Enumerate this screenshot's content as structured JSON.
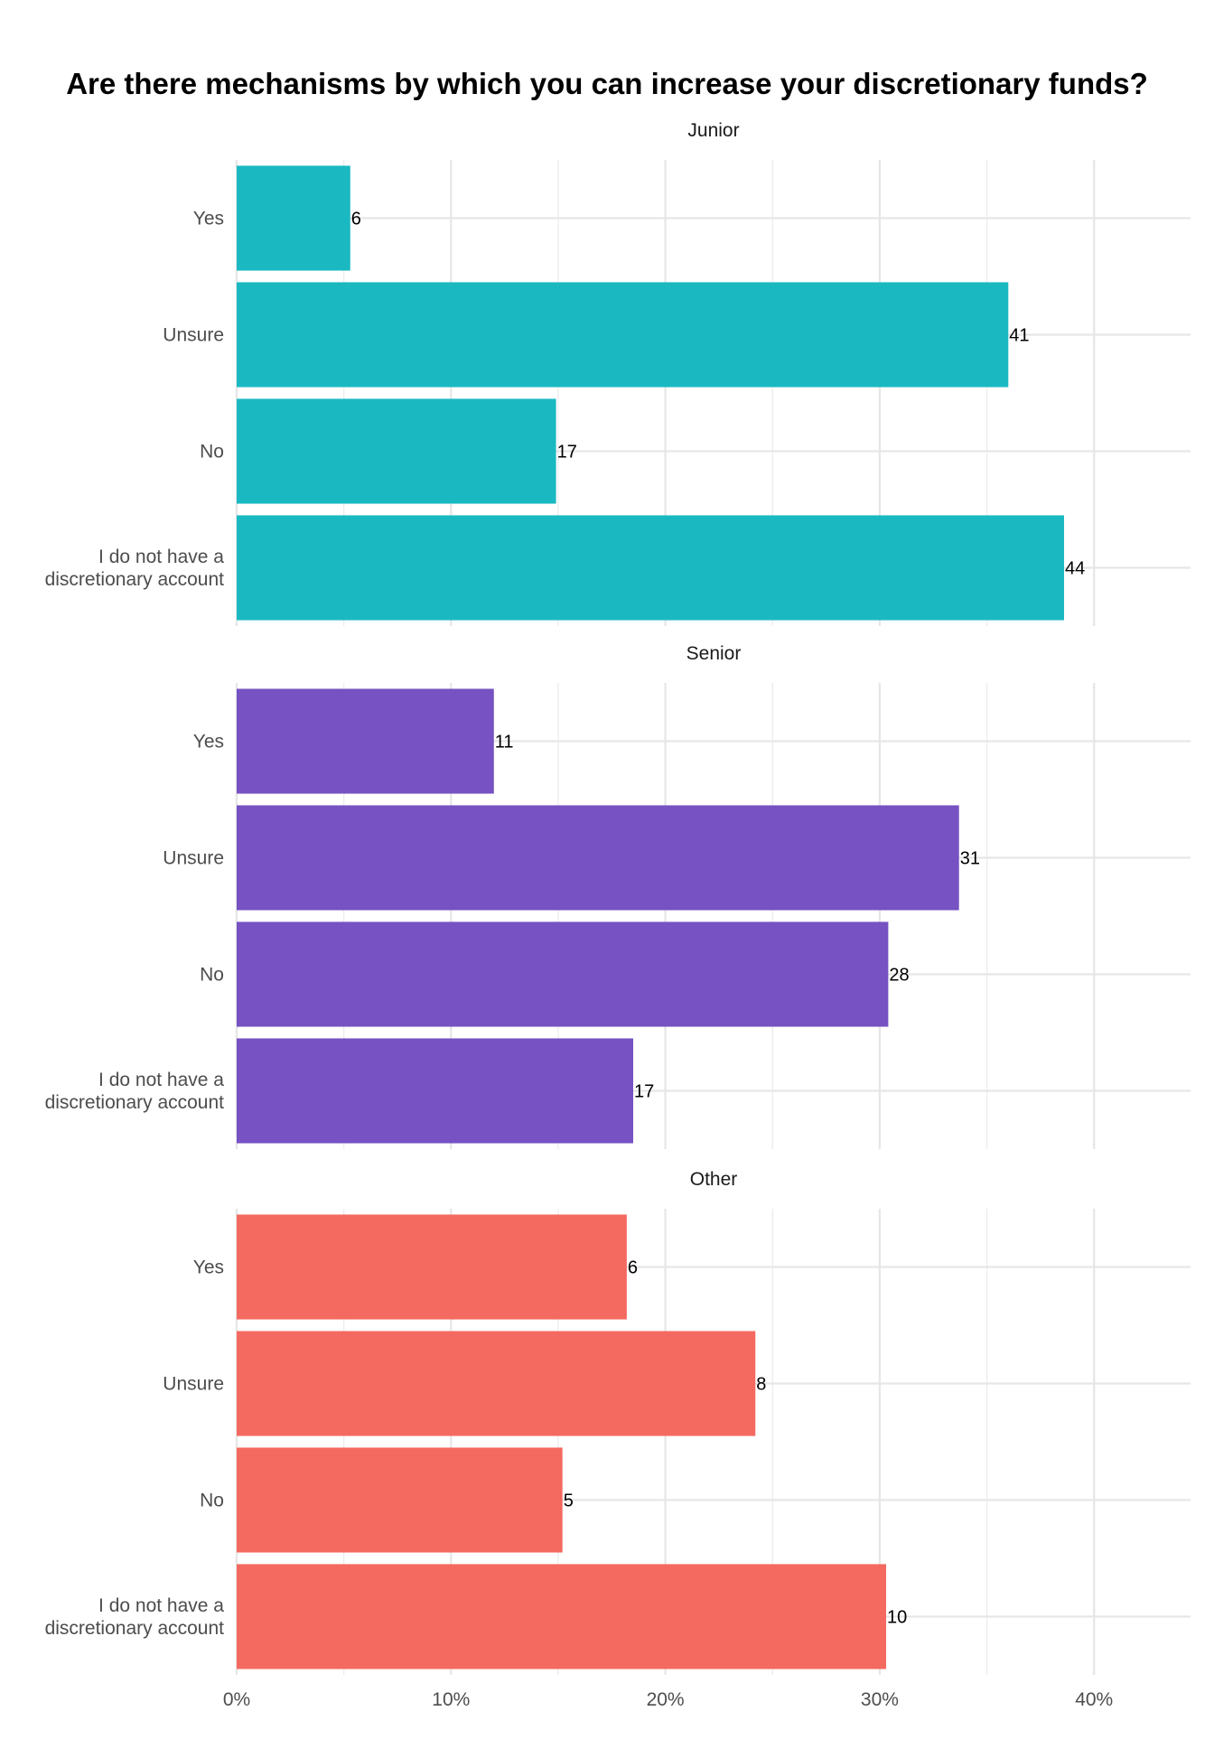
{
  "chart_data": {
    "type": "bar",
    "orientation": "horizontal",
    "title": "Are there mechanisms by which you can increase your discretionary funds?",
    "xlabel": "",
    "ylabel": "",
    "x_ticks": [
      "0%",
      "10%",
      "20%",
      "30%",
      "40%"
    ],
    "xlim": [
      0,
      44.5
    ],
    "grid": true,
    "legend": "none",
    "categories": [
      "Yes",
      "Unsure",
      "No",
      "I do not have a\ndiscretionary account"
    ],
    "facets": [
      {
        "name": "Junior",
        "color": "#1ab9c2",
        "percent": [
          5.3,
          36.0,
          14.9,
          38.6
        ],
        "counts": [
          "6",
          "41",
          "17",
          "44"
        ]
      },
      {
        "name": "Senior",
        "color": "#7652c2",
        "percent": [
          12.0,
          33.7,
          30.4,
          18.5
        ],
        "counts": [
          "11",
          "31",
          "28",
          "17"
        ]
      },
      {
        "name": "Other",
        "color": "#f46a60",
        "percent": [
          18.2,
          24.2,
          15.2,
          30.3
        ],
        "counts": [
          "6",
          "8",
          "5",
          "10"
        ]
      }
    ]
  }
}
